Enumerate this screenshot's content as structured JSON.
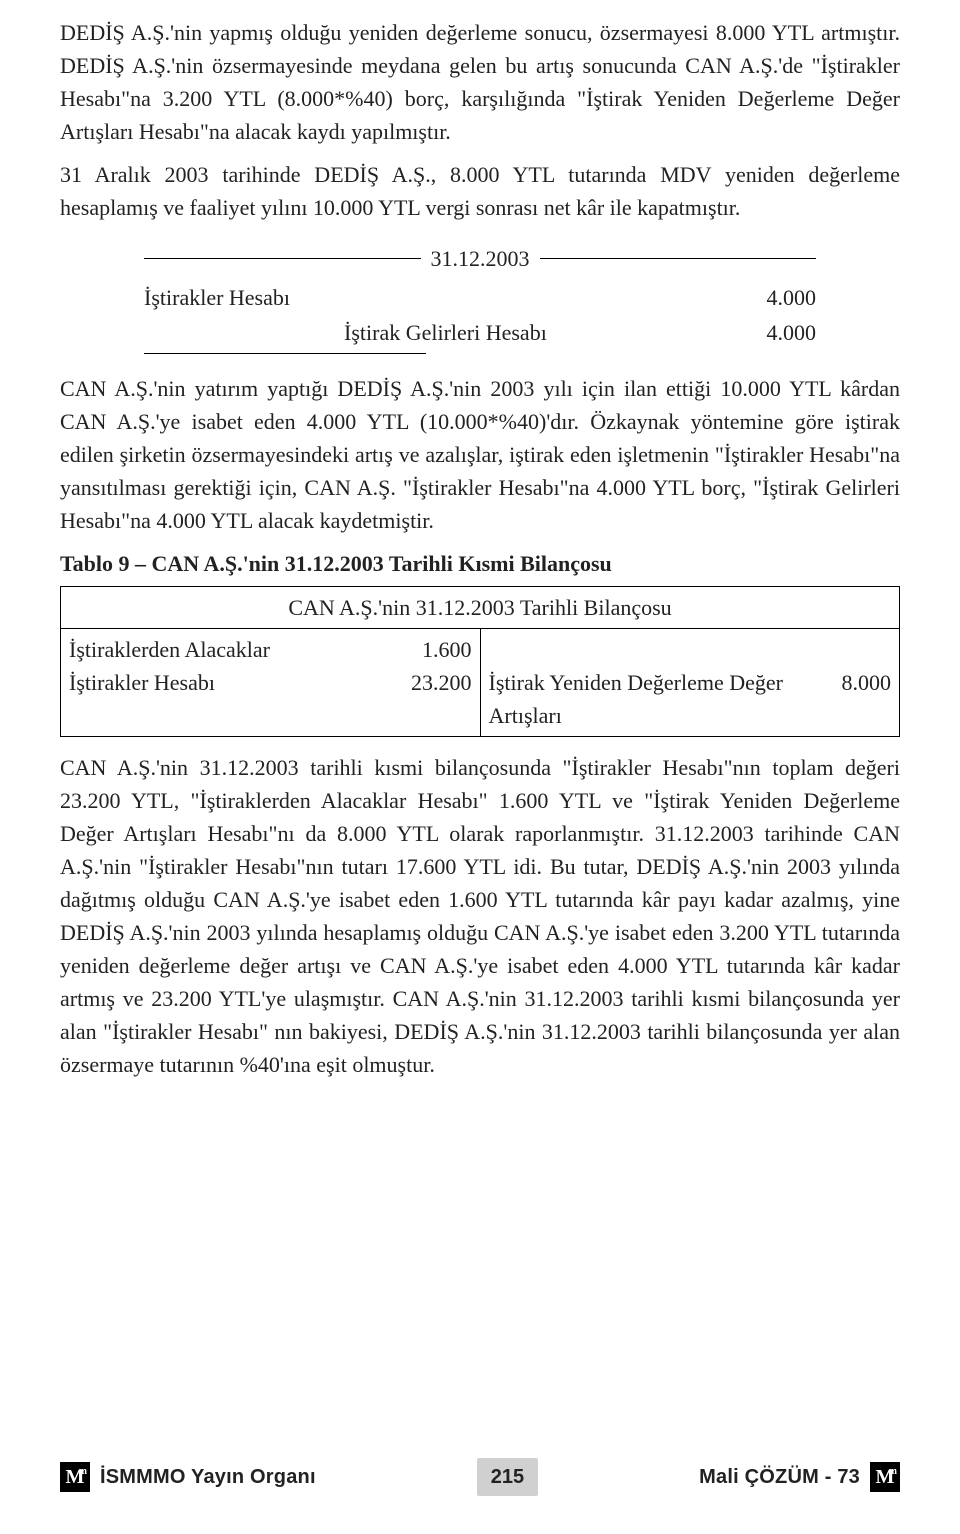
{
  "paragraphs": {
    "p1": "DEDİŞ A.Ş.'nin yapmış olduğu yeniden değerleme sonucu, özsermayesi 8.000 YTL artmıştır. DEDİŞ A.Ş.'nin özsermayesinde meydana gelen bu artış sonucunda CAN A.Ş.'de \"İştirakler Hesabı\"na 3.200 YTL (8.000*%40) borç, karşılığında \"İştirak Yeniden Değerleme Değer Artışları Hesabı\"na alacak kaydı yapılmıştır.",
    "p2": "31 Aralık 2003 tarihinde DEDİŞ A.Ş., 8.000 YTL tutarında MDV yeniden değerleme hesaplamış ve faaliyet yılını 10.000 YTL vergi sonrası net kâr ile kapatmıştır.",
    "p3": "CAN A.Ş.'nin yatırım yaptığı DEDİŞ A.Ş.'nin 2003 yılı için ilan ettiği 10.000 YTL kârdan CAN A.Ş.'ye isabet eden 4.000 YTL (10.000*%40)'dır. Özkaynak yöntemine göre iştirak edilen şirketin özsermayesindeki artış ve azalışlar, iştirak eden işletmenin \"İştirakler Hesabı\"na yansıtılması gerektiği için, CAN A.Ş. \"İştirakler Hesabı\"na 4.000 YTL borç, \"İştirak Gelirleri Hesabı\"na 4.000 YTL alacak kaydetmiştir.",
    "p4": "CAN A.Ş.'nin 31.12.2003 tarihli kısmi bilançosunda \"İştirakler Hesabı\"nın toplam değeri 23.200 YTL, \"İştiraklerden Alacaklar Hesabı\" 1.600 YTL ve \"İştirak Yeniden Değerleme Değer Artışları Hesabı\"nı da 8.000 YTL olarak raporlanmıştır. 31.12.2003 tarihinde CAN A.Ş.'nin \"İştirakler Hesabı\"nın tutarı 17.600 YTL idi. Bu tutar, DEDİŞ A.Ş.'nin 2003 yılında dağıtmış olduğu CAN A.Ş.'ye isabet eden 1.600 YTL tutarında kâr payı kadar azalmış, yine DEDİŞ A.Ş.'nin 2003 yılında hesaplamış olduğu CAN A.Ş.'ye isabet eden 3.200 YTL tutarında yeniden değerleme değer artışı ve CAN A.Ş.'ye isabet eden 4.000 YTL tutarında kâr kadar artmış ve 23.200 YTL'ye ulaşmıştır. CAN A.Ş.'nin 31.12.2003 tarihli kısmi bilançosunda yer alan \"İştirakler Hesabı\" nın bakiyesi, DEDİŞ A.Ş.'nin 31.12.2003 tarihli bilançosunda yer alan özsermaye tutarının %40'ına eşit olmuştur."
  },
  "journal": {
    "date": "31.12.2003",
    "debit_account": "İştirakler Hesabı",
    "debit_amount": "4.000",
    "credit_account": "İştirak Gelirleri Hesabı",
    "credit_amount": "4.000"
  },
  "table": {
    "title": "Tablo 9 – CAN A.Ş.'nin 31.12.2003 Tarihli Kısmi Bilançosu",
    "caption": "CAN A.Ş.'nin 31.12.2003 Tarihli Bilançosu",
    "left_rows": [
      {
        "label": "İştiraklerden Alacaklar",
        "value": "1.600"
      },
      {
        "label": "İştirakler Hesabı",
        "value": "23.200"
      }
    ],
    "right_label": "İştirak Yeniden Değerleme Değer Artışları",
    "right_value": "8.000"
  },
  "footer": {
    "left_label": "İSMMMO Yayın Organı",
    "page_number": "215",
    "right_prefix": "Mali",
    "right_bold": "ÇÖZÜM",
    "right_suffix": " - 73",
    "badge_char": "M",
    "badge_sup": "m"
  }
}
